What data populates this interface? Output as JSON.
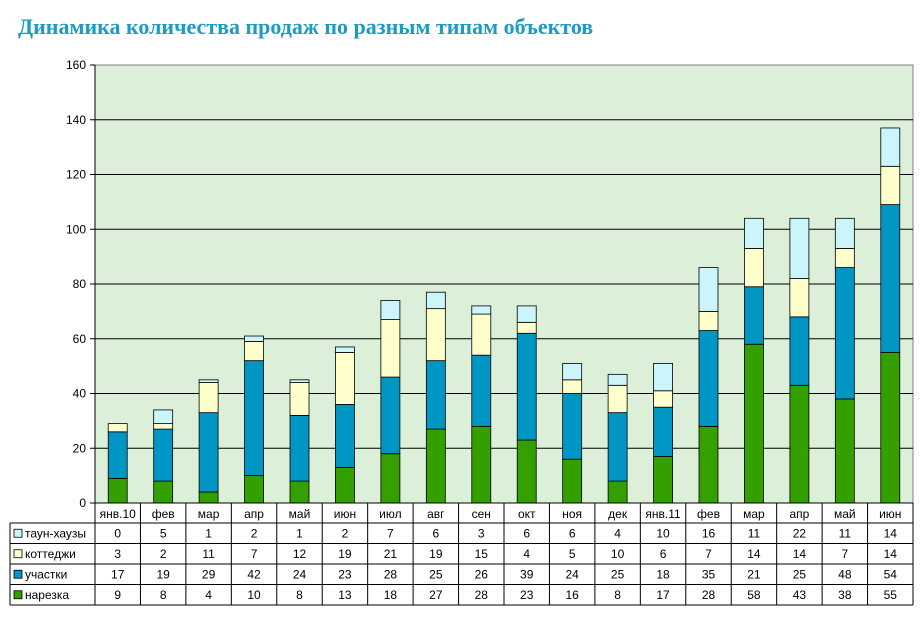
{
  "chart_data": {
    "type": "bar",
    "stacked": true,
    "title": "Динамика количества продаж по разным типам объектов",
    "categories": [
      "янв.10",
      "фев",
      "мар",
      "апр",
      "май",
      "июн",
      "июл",
      "авг",
      "сен",
      "окт",
      "ноя",
      "дек",
      "янв.11",
      "фев",
      "мар",
      "апр",
      "май",
      "июн"
    ],
    "series": [
      {
        "name": "таун-хаузы",
        "color": "#ccf5fb",
        "values": [
          0,
          5,
          1,
          2,
          1,
          2,
          7,
          6,
          3,
          6,
          6,
          4,
          10,
          16,
          11,
          22,
          11,
          14
        ]
      },
      {
        "name": "коттеджи",
        "color": "#ffffcc",
        "values": [
          3,
          2,
          11,
          7,
          12,
          19,
          21,
          19,
          15,
          4,
          5,
          10,
          6,
          7,
          14,
          14,
          7,
          14
        ]
      },
      {
        "name": "участки",
        "color": "#0096c4",
        "values": [
          17,
          19,
          29,
          42,
          24,
          23,
          28,
          25,
          26,
          39,
          24,
          25,
          18,
          35,
          21,
          25,
          48,
          54
        ]
      },
      {
        "name": "нарезка",
        "color": "#33a000",
        "values": [
          9,
          8,
          4,
          10,
          8,
          13,
          18,
          27,
          28,
          23,
          16,
          8,
          17,
          28,
          58,
          43,
          38,
          55
        ]
      }
    ],
    "ylim": [
      0,
      160
    ],
    "yticks": [
      0,
      20,
      40,
      60,
      80,
      100,
      120,
      140,
      160
    ],
    "grid": true,
    "plot_background": "#dcefd9",
    "legend": "data-table-left"
  }
}
